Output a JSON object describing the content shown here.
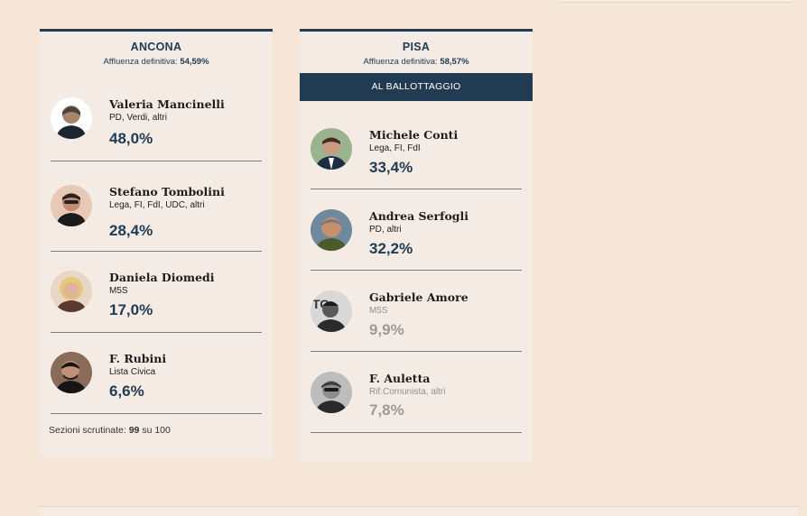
{
  "ancona": {
    "city": "ANCONA",
    "turnout_label": "Affluenza definitiva:",
    "turnout_value": "54,59%",
    "candidates": [
      {
        "name": "Valeria Mancinelli",
        "party": "PD, Verdi, altri",
        "percent": "48,0%"
      },
      {
        "name": "Stefano Tombolini",
        "party": "Lega, FI, FdI, UDC, altri",
        "percent": "28,4%"
      },
      {
        "name": "Daniela Diomedi",
        "party": "M5S",
        "percent": "17,0%"
      },
      {
        "name": "F. Rubini",
        "party": "Lista Civica",
        "percent": "6,6%"
      }
    ],
    "sections_label": "Sezioni scrutinate:",
    "sections_done": "99",
    "sections_sep": "su",
    "sections_total": "100"
  },
  "pisa": {
    "city": "PISA",
    "turnout_label": "Affluenza definitiva:",
    "turnout_value": "58,57%",
    "runoff_label": "AL BALLOTTAGGIO",
    "candidates": [
      {
        "name": "Michele Conti",
        "party": "Lega, FI, FdI",
        "percent": "33,4%"
      },
      {
        "name": "Andrea Serfogli",
        "party": "PD, altri",
        "percent": "32,2%"
      },
      {
        "name": "Gabriele Amore",
        "party": "M5S",
        "percent": "9,9%"
      },
      {
        "name": "F. Auletta",
        "party": "Rif.Comunista, altri",
        "percent": "7,8%"
      }
    ]
  },
  "colors": {
    "background": "#f5e6d8",
    "card": "#f5ebe5",
    "accent_navy": "#213c52",
    "muted_text": "#9a9a9a"
  }
}
